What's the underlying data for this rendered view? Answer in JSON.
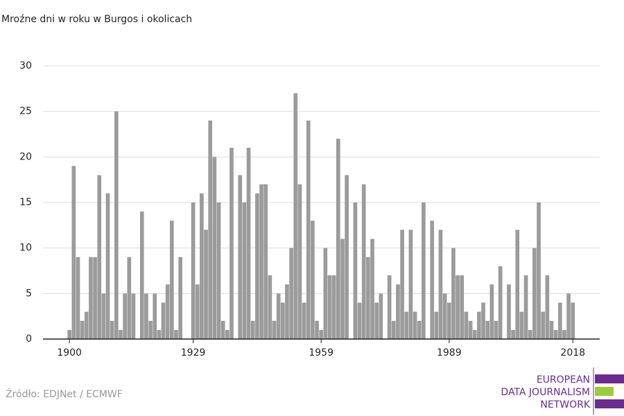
{
  "chart_data": {
    "type": "bar",
    "title": "Mroźne dni w roku w Burgos i okolicach",
    "x": [
      1900,
      1901,
      1902,
      1903,
      1904,
      1905,
      1906,
      1907,
      1908,
      1909,
      1910,
      1911,
      1912,
      1913,
      1914,
      1915,
      1916,
      1917,
      1918,
      1919,
      1920,
      1921,
      1922,
      1923,
      1924,
      1925,
      1926,
      1927,
      1928,
      1929,
      1930,
      1931,
      1932,
      1933,
      1934,
      1935,
      1936,
      1937,
      1938,
      1939,
      1940,
      1941,
      1942,
      1943,
      1944,
      1945,
      1946,
      1947,
      1948,
      1949,
      1950,
      1951,
      1952,
      1953,
      1954,
      1955,
      1956,
      1957,
      1958,
      1959,
      1960,
      1961,
      1962,
      1963,
      1964,
      1965,
      1966,
      1967,
      1968,
      1969,
      1970,
      1971,
      1972,
      1973,
      1974,
      1975,
      1976,
      1977,
      1978,
      1979,
      1980,
      1981,
      1982,
      1983,
      1984,
      1985,
      1986,
      1987,
      1988,
      1989,
      1990,
      1991,
      1992,
      1993,
      1994,
      1995,
      1996,
      1997,
      1998,
      1999,
      2000,
      2001,
      2002,
      2003,
      2004,
      2005,
      2006,
      2007,
      2008,
      2009,
      2010,
      2011,
      2012,
      2013,
      2014,
      2015,
      2016,
      2017,
      2018
    ],
    "values": [
      1,
      19,
      9,
      2,
      3,
      9,
      9,
      18,
      5,
      16,
      2,
      25,
      1,
      5,
      9,
      5,
      0,
      14,
      5,
      2,
      5,
      1,
      4,
      6,
      13,
      1,
      9,
      0,
      0,
      15,
      6,
      16,
      12,
      24,
      20,
      15,
      2,
      1,
      21,
      0,
      18,
      15,
      21,
      2,
      16,
      17,
      17,
      7,
      2,
      5,
      4,
      6,
      10,
      27,
      17,
      4,
      24,
      13,
      2,
      1,
      10,
      7,
      7,
      22,
      11,
      18,
      0,
      15,
      4,
      17,
      9,
      11,
      4,
      5,
      0,
      7,
      2,
      6,
      12,
      3,
      12,
      3,
      2,
      15,
      0,
      13,
      3,
      12,
      5,
      4,
      10,
      7,
      7,
      3,
      2,
      1,
      3,
      4,
      2,
      6,
      2,
      8,
      0,
      6,
      1,
      12,
      3,
      7,
      1,
      10,
      15,
      3,
      7,
      2,
      1,
      4,
      1,
      5,
      4
    ],
    "color": "#9b9b9b",
    "xlim": [
      1893.8,
      2024.3
    ],
    "xticks": [
      1900,
      1929,
      1959,
      1989,
      2018
    ],
    "ylim": [
      0,
      30
    ],
    "yticks": [
      0,
      5,
      10,
      15,
      20,
      25,
      30
    ],
    "grid": true,
    "source": "Źródło: EDJNet / ECMWF",
    "logo": [
      "EUROPEAN",
      "DATA JOURNALISM",
      "NETWORK"
    ]
  }
}
